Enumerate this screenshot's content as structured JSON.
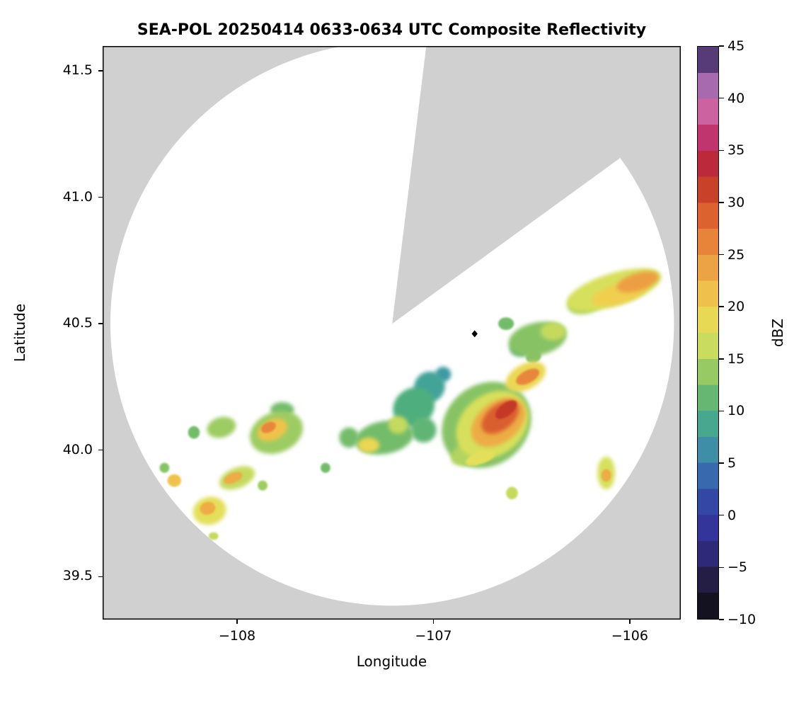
{
  "chart_data": {
    "type": "heatmap",
    "title": "SEA-POL 20250414 0633-0634 UTC Composite Reflectivity",
    "xlabel": "Longitude",
    "ylabel": "Latitude",
    "xlim": [
      -108.685,
      -105.74
    ],
    "ylim": [
      39.33,
      41.598
    ],
    "xticks": [
      -108,
      -107,
      -106
    ],
    "xtick_labels": [
      "−108",
      "−107",
      "−106"
    ],
    "yticks": [
      39.5,
      40.0,
      40.5,
      41.0,
      41.5
    ],
    "ytick_labels": [
      "39.5",
      "40.0",
      "40.5",
      "41.0",
      "41.5"
    ],
    "background_color": "#d0d0d0",
    "scan_area_color": "#ffffff",
    "border_color": "#000000",
    "radar": {
      "center_lon": -107.21,
      "center_lat": 40.5,
      "range_deg_lat": 1.115,
      "blanked_sector_azimuth_deg": [
        7,
        54
      ]
    },
    "site_marker": {
      "lon": -106.79,
      "lat": 40.46,
      "shape": "diamond",
      "color": "#000000"
    },
    "colorbar": {
      "label": "dBZ",
      "min": -10,
      "max": 45,
      "band_step": 2.5,
      "ticks": [
        45,
        40,
        35,
        30,
        25,
        20,
        15,
        10,
        5,
        0,
        -5,
        -10
      ],
      "tick_labels": [
        "45",
        "40",
        "35",
        "30",
        "25",
        "20",
        "15",
        "10",
        "5",
        "0",
        "−5",
        "−10"
      ]
    },
    "colormap_stops": [
      [
        -10,
        "#0b0b0f"
      ],
      [
        -7.5,
        "#1c1830"
      ],
      [
        -5,
        "#2c2457"
      ],
      [
        -2.5,
        "#323097"
      ],
      [
        0,
        "#333a9e"
      ],
      [
        2.5,
        "#3355ab"
      ],
      [
        5,
        "#3d7cb0"
      ],
      [
        7.5,
        "#40a0a0"
      ],
      [
        10,
        "#4fae7d"
      ],
      [
        12.5,
        "#7cbf66"
      ],
      [
        15,
        "#b3d45f"
      ],
      [
        17.5,
        "#e0e35a"
      ],
      [
        20,
        "#f0cf4f"
      ],
      [
        22.5,
        "#eeb247"
      ],
      [
        25,
        "#ea933f"
      ],
      [
        27.5,
        "#e37434"
      ],
      [
        30,
        "#d4502c"
      ],
      [
        32.5,
        "#c03226"
      ],
      [
        35,
        "#b5204e"
      ],
      [
        37.5,
        "#cb4a8e"
      ],
      [
        40,
        "#cf7ab4"
      ],
      [
        42.5,
        "#7e5aa8"
      ],
      [
        45,
        "#2f1a47"
      ]
    ],
    "echoes": [
      {
        "lon": -106.08,
        "lat": 40.635,
        "w": 0.5,
        "h": 0.13,
        "rot": -17,
        "dbz": 17
      },
      {
        "lon": -106.22,
        "lat": 40.585,
        "w": 0.2,
        "h": 0.09,
        "rot": -17,
        "dbz": 15
      },
      {
        "lon": -105.96,
        "lat": 40.665,
        "w": 0.22,
        "h": 0.07,
        "rot": -17,
        "dbz": 24
      },
      {
        "lon": -106.05,
        "lat": 40.62,
        "w": 0.3,
        "h": 0.08,
        "rot": -17,
        "dbz": 20
      },
      {
        "lon": -106.47,
        "lat": 40.44,
        "w": 0.3,
        "h": 0.13,
        "rot": -12,
        "dbz": 13
      },
      {
        "lon": -106.39,
        "lat": 40.47,
        "w": 0.13,
        "h": 0.07,
        "rot": 0,
        "dbz": 16
      },
      {
        "lon": -106.56,
        "lat": 40.4,
        "w": 0.1,
        "h": 0.06,
        "rot": 0,
        "dbz": 11
      },
      {
        "lon": -106.63,
        "lat": 40.5,
        "w": 0.08,
        "h": 0.05,
        "rot": 0,
        "dbz": 12
      },
      {
        "lon": -106.53,
        "lat": 40.29,
        "w": 0.22,
        "h": 0.1,
        "rot": -28,
        "dbz": 19
      },
      {
        "lon": -106.52,
        "lat": 40.29,
        "w": 0.13,
        "h": 0.05,
        "rot": -28,
        "dbz": 26
      },
      {
        "lon": -106.49,
        "lat": 40.37,
        "w": 0.08,
        "h": 0.05,
        "rot": -20,
        "dbz": 13
      },
      {
        "lon": -106.73,
        "lat": 40.1,
        "w": 0.48,
        "h": 0.32,
        "rot": -38,
        "dbz": 13
      },
      {
        "lon": -106.7,
        "lat": 40.1,
        "w": 0.4,
        "h": 0.24,
        "rot": -38,
        "dbz": 17
      },
      {
        "lon": -106.67,
        "lat": 40.11,
        "w": 0.31,
        "h": 0.16,
        "rot": -38,
        "dbz": 23
      },
      {
        "lon": -106.66,
        "lat": 40.13,
        "w": 0.22,
        "h": 0.1,
        "rot": -38,
        "dbz": 29
      },
      {
        "lon": -106.63,
        "lat": 40.16,
        "w": 0.13,
        "h": 0.05,
        "rot": -38,
        "dbz": 32
      },
      {
        "lon": -106.79,
        "lat": 40.0,
        "w": 0.26,
        "h": 0.1,
        "rot": -25,
        "dbz": 15
      },
      {
        "lon": -106.76,
        "lat": 39.97,
        "w": 0.16,
        "h": 0.05,
        "rot": -20,
        "dbz": 18
      },
      {
        "lon": -107.25,
        "lat": 40.05,
        "w": 0.3,
        "h": 0.13,
        "rot": -10,
        "dbz": 12
      },
      {
        "lon": -107.1,
        "lat": 40.17,
        "w": 0.22,
        "h": 0.15,
        "rot": -35,
        "dbz": 10
      },
      {
        "lon": -107.02,
        "lat": 40.25,
        "w": 0.16,
        "h": 0.12,
        "rot": -40,
        "dbz": 8
      },
      {
        "lon": -106.95,
        "lat": 40.3,
        "w": 0.08,
        "h": 0.06,
        "rot": 0,
        "dbz": 7
      },
      {
        "lon": -107.18,
        "lat": 40.1,
        "w": 0.1,
        "h": 0.07,
        "rot": 0,
        "dbz": 16
      },
      {
        "lon": -107.33,
        "lat": 40.02,
        "w": 0.11,
        "h": 0.06,
        "rot": 0,
        "dbz": 19
      },
      {
        "lon": -107.05,
        "lat": 40.08,
        "w": 0.13,
        "h": 0.1,
        "rot": 0,
        "dbz": 11
      },
      {
        "lon": -107.43,
        "lat": 40.05,
        "w": 0.1,
        "h": 0.08,
        "rot": 0,
        "dbz": 12
      },
      {
        "lon": -107.55,
        "lat": 39.93,
        "w": 0.05,
        "h": 0.04,
        "rot": 0,
        "dbz": 12
      },
      {
        "lon": -107.8,
        "lat": 40.07,
        "w": 0.28,
        "h": 0.16,
        "rot": -22,
        "dbz": 14
      },
      {
        "lon": -107.82,
        "lat": 40.08,
        "w": 0.16,
        "h": 0.08,
        "rot": -25,
        "dbz": 21
      },
      {
        "lon": -107.84,
        "lat": 40.09,
        "w": 0.08,
        "h": 0.04,
        "rot": -25,
        "dbz": 26
      },
      {
        "lon": -107.77,
        "lat": 40.16,
        "w": 0.12,
        "h": 0.06,
        "rot": 0,
        "dbz": 12
      },
      {
        "lon": -108.08,
        "lat": 40.09,
        "w": 0.15,
        "h": 0.08,
        "rot": -15,
        "dbz": 14
      },
      {
        "lon": -108.22,
        "lat": 40.07,
        "w": 0.06,
        "h": 0.05,
        "rot": 0,
        "dbz": 12
      },
      {
        "lon": -108.0,
        "lat": 39.89,
        "w": 0.19,
        "h": 0.08,
        "rot": -22,
        "dbz": 16
      },
      {
        "lon": -108.02,
        "lat": 39.89,
        "w": 0.1,
        "h": 0.04,
        "rot": -22,
        "dbz": 23
      },
      {
        "lon": -108.32,
        "lat": 39.88,
        "w": 0.07,
        "h": 0.05,
        "rot": 0,
        "dbz": 21
      },
      {
        "lon": -108.14,
        "lat": 39.76,
        "w": 0.17,
        "h": 0.11,
        "rot": -15,
        "dbz": 18
      },
      {
        "lon": -108.15,
        "lat": 39.77,
        "w": 0.08,
        "h": 0.05,
        "rot": -15,
        "dbz": 23
      },
      {
        "lon": -108.12,
        "lat": 39.66,
        "w": 0.05,
        "h": 0.03,
        "rot": 0,
        "dbz": 16
      },
      {
        "lon": -108.37,
        "lat": 39.93,
        "w": 0.05,
        "h": 0.04,
        "rot": 0,
        "dbz": 13
      },
      {
        "lon": -107.87,
        "lat": 39.86,
        "w": 0.05,
        "h": 0.04,
        "rot": 0,
        "dbz": 14
      },
      {
        "lon": -106.12,
        "lat": 39.91,
        "w": 0.09,
        "h": 0.13,
        "rot": 0,
        "dbz": 17
      },
      {
        "lon": -106.12,
        "lat": 39.9,
        "w": 0.05,
        "h": 0.05,
        "rot": 0,
        "dbz": 23
      },
      {
        "lon": -106.6,
        "lat": 39.83,
        "w": 0.06,
        "h": 0.05,
        "rot": 0,
        "dbz": 16
      }
    ]
  }
}
